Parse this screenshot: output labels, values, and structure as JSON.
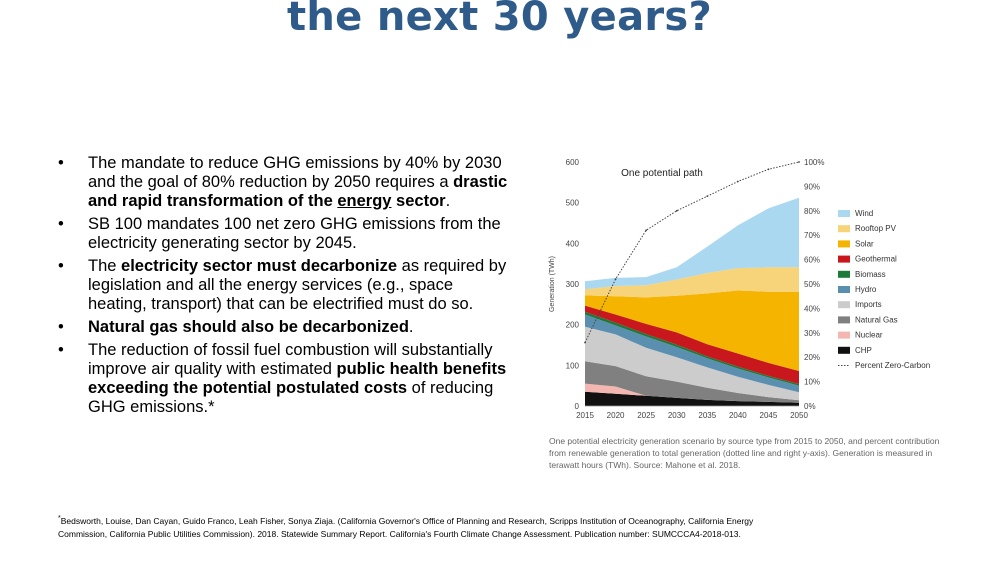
{
  "slide": {
    "title": "the next 30 years?"
  },
  "bullets": [
    {
      "parts": [
        {
          "text": "The mandate to reduce GHG emissions by 40% by 2030 and the goal of 80% reduction by 2050 requires a ",
          "b": false
        },
        {
          "text": "drastic and rapid transformation of the ",
          "b": true
        },
        {
          "text": "energy",
          "b": true,
          "u": true
        },
        {
          "text": " sector",
          "b": true
        },
        {
          "text": ".",
          "b": false
        }
      ]
    },
    {
      "parts": [
        {
          "text": "SB 100 mandates 100 net zero GHG emissions from the electricity generating sector by 2045.",
          "b": false
        }
      ]
    },
    {
      "parts": [
        {
          "text": "The ",
          "b": false
        },
        {
          "text": "electricity sector must decarbonize",
          "b": true
        },
        {
          "text": " as required by legislation and all the energy services (e.g., space heating, transport) that can be electrified must do so.",
          "b": false
        }
      ]
    },
    {
      "parts": [
        {
          "text": "Natural gas should also be decarbonized",
          "b": true
        },
        {
          "text": ".",
          "b": false
        }
      ]
    },
    {
      "parts": [
        {
          "text": "The reduction of fossil fuel combustion will substantially improve air quality with estimated ",
          "b": false
        },
        {
          "text": "public health benefits exceeding the potential postulated costs",
          "b": true
        },
        {
          "text": " of reducing GHG emissions.*",
          "b": false
        }
      ]
    }
  ],
  "chart_data": {
    "type": "area",
    "title": "One potential path",
    "ylabel": "Generation (TWh)",
    "x": [
      2015,
      2020,
      2025,
      2030,
      2035,
      2040,
      2045,
      2050
    ],
    "xticks": [
      "2015",
      "2020",
      "2025",
      "2030",
      "2035",
      "2040",
      "2045",
      "2050"
    ],
    "ylim": [
      0,
      600
    ],
    "yticks": [
      "0",
      "100",
      "200",
      "300",
      "400",
      "500",
      "600"
    ],
    "y2lim": [
      0,
      100
    ],
    "y2ticks": [
      "0%",
      "10%",
      "20%",
      "30%",
      "40%",
      "50%",
      "60%",
      "70%",
      "80%",
      "90%",
      "100%"
    ],
    "series": [
      {
        "name": "CHP",
        "color": "#111111",
        "values": [
          35,
          30,
          25,
          20,
          15,
          12,
          10,
          8
        ]
      },
      {
        "name": "Nuclear",
        "color": "#f4b6b0",
        "values": [
          20,
          18,
          0,
          0,
          0,
          0,
          0,
          0
        ]
      },
      {
        "name": "Natural Gas",
        "color": "#808080",
        "values": [
          55,
          50,
          48,
          40,
          30,
          20,
          12,
          6
        ]
      },
      {
        "name": "Imports",
        "color": "#cccccc",
        "values": [
          85,
          78,
          70,
          60,
          50,
          40,
          30,
          20
        ]
      },
      {
        "name": "Hydro",
        "color": "#5b8fb0",
        "values": [
          30,
          22,
          28,
          25,
          22,
          20,
          18,
          16
        ]
      },
      {
        "name": "Biomass",
        "color": "#1e7a3a",
        "values": [
          7,
          7,
          6,
          6,
          5,
          5,
          4,
          4
        ]
      },
      {
        "name": "Geothermal",
        "color": "#c8171d",
        "values": [
          15,
          20,
          25,
          30,
          30,
          32,
          32,
          32
        ]
      },
      {
        "name": "Solar",
        "color": "#f5b400",
        "values": [
          25,
          45,
          65,
          90,
          125,
          155,
          175,
          195
        ]
      },
      {
        "name": "Rooftop PV",
        "color": "#f7d37a",
        "values": [
          15,
          25,
          30,
          40,
          50,
          55,
          60,
          60
        ]
      },
      {
        "name": "Wind",
        "color": "#a9d8f0",
        "values": [
          20,
          20,
          20,
          30,
          65,
          105,
          145,
          171
        ]
      }
    ],
    "line": {
      "name": "Percent Zero-Carbon",
      "values": [
        26,
        52,
        72,
        80,
        86,
        92,
        97,
        100
      ]
    }
  },
  "caption": "One potential electricity generation scenario by source type from 2015 to 2050, and percent contribution from renewable generation to total generation (dotted line and right y-axis). Generation is measured in terawatt hours (TWh). Source: Mahone et al. 2018.",
  "footnote": {
    "mark": "*",
    "text": "Bedsworth, Louise, Dan Cayan, Guido Franco, Leah Fisher, Sonya Ziaja. (California Governor's Office of Planning and Research, Scripps Institution of Oceanography, California Energy Commission, California Public Utilities Commission). 2018. Statewide Summary Report. California's Fourth Climate Change Assessment. Publication number: SUMCCCA4-2018-013."
  }
}
